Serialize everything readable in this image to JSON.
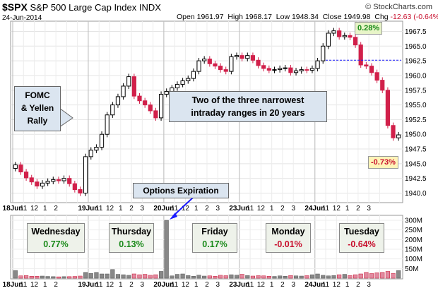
{
  "header": {
    "symbol": "$SPX",
    "name": "S&P 500 Large Cap Index",
    "exchange": "INDX",
    "date": "24-Jun-2014",
    "open_label": "Open",
    "open": "1961.97",
    "high_label": "High",
    "high": "1968.17",
    "low_label": "Low",
    "low": "1948.34",
    "close_label": "Close",
    "close": "1949.98",
    "chg_label": "Chg",
    "chg": "-12.63 (-0.64%)",
    "brand": "© StockCharts.com"
  },
  "annotations": {
    "fomc_line1": "FOMC",
    "fomc_line2": "& Yellen",
    "fomc_line3": "Rally",
    "narrow_line1": "Two of the three narrowest",
    "narrow_line2": "intraday ranges in 20 years",
    "options_expiration": "Options Expiration",
    "high_pct": "0.28%",
    "low_pct": "-0.73%"
  },
  "day_boxes": [
    {
      "day": "Wednesday",
      "pct": "0.77%",
      "sign": "pos"
    },
    {
      "day": "Thursday",
      "pct": "0.13%",
      "sign": "pos"
    },
    {
      "day": "Friday",
      "pct": "0.17%",
      "sign": "pos"
    },
    {
      "day": "Monday",
      "pct": "-0.01%",
      "sign": "neg"
    },
    {
      "day": "Tuesday",
      "pct": "-0.64%",
      "sign": "neg"
    }
  ],
  "colors": {
    "up": "#000000",
    "down": "#d1204a",
    "dotted": "#1a1aff",
    "arrow": "#1a1aff"
  },
  "chart_data": {
    "type": "ohlc-candlestick",
    "price_axis": {
      "min": 1938.5,
      "max": 1969,
      "ticks": [
        1940.0,
        1942.5,
        1945.0,
        1947.5,
        1950.0,
        1952.5,
        1955.0,
        1957.5,
        1960.0,
        1962.5,
        1965.0,
        1967.5
      ]
    },
    "volume_axis": {
      "min": 0,
      "max": 300,
      "unit": "M",
      "ticks": [
        "50M",
        "100M",
        "150M",
        "200M",
        "250M",
        "300M"
      ]
    },
    "reference_line": 1962.6,
    "x_tick_labels": [
      "18Jun",
      "11",
      "12",
      "1",
      "2",
      "19Jun",
      "11",
      "12",
      "1",
      "2",
      "3",
      "20Jun",
      "11",
      "12",
      "1",
      "2",
      "3",
      "23Jun",
      "11",
      "12",
      "1",
      "2",
      "3",
      "24Jun",
      "11",
      "12",
      "1",
      "2",
      "3"
    ],
    "days": [
      {
        "label": "18Jun",
        "start": 0
      },
      {
        "label": "19Jun",
        "start": 14
      },
      {
        "label": "20Jun",
        "start": 28
      },
      {
        "label": "23Jun",
        "start": 42
      },
      {
        "label": "24Jun",
        "start": 56
      }
    ],
    "closes": [
      1944.8,
      1943.6,
      1942.6,
      1941.9,
      1941.2,
      1941.7,
      1942.0,
      1942.3,
      1942.1,
      1942.5,
      1941.6,
      1940.6,
      1940.0,
      1946.2,
      1947.3,
      1947.8,
      1950.0,
      1953.3,
      1955.0,
      1956.4,
      1958.2,
      1959.8,
      1956.5,
      1955.7,
      1955.0,
      1954.0,
      1952.8,
      1956.8,
      1957.3,
      1957.9,
      1958.5,
      1959.1,
      1959.5,
      1960.7,
      1962.5,
      1962.8,
      1962.0,
      1961.6,
      1961.0,
      1960.7,
      1963.2,
      1963.4,
      1962.9,
      1963.4,
      1962.6,
      1961.7,
      1961.2,
      1960.9,
      1961.0,
      1961.2,
      1961.3,
      1960.5,
      1960.8,
      1961.0,
      1960.9,
      1961.2,
      1962.5,
      1965.0,
      1967.2,
      1967.6,
      1966.6,
      1966.8,
      1966.5,
      1965.2,
      1961.8,
      1961.6,
      1960.5,
      1959.2,
      1957.5,
      1951.5,
      1949.4,
      1949.9
    ],
    "volume": [
      40,
      12,
      14,
      10,
      10,
      11,
      9,
      8,
      7,
      8,
      8,
      9,
      11,
      30,
      25,
      30,
      22,
      22,
      45,
      20,
      18,
      15,
      22,
      18,
      20,
      15,
      18,
      35,
      300,
      12,
      20,
      22,
      14,
      10,
      16,
      11,
      12,
      10,
      15,
      13,
      18,
      16,
      20,
      14,
      11,
      13,
      12,
      10,
      9,
      12,
      10,
      14,
      12,
      11,
      13,
      18,
      22,
      15,
      12,
      14,
      18,
      20,
      14,
      18,
      22,
      30,
      24,
      28,
      30,
      35,
      25,
      40
    ]
  }
}
